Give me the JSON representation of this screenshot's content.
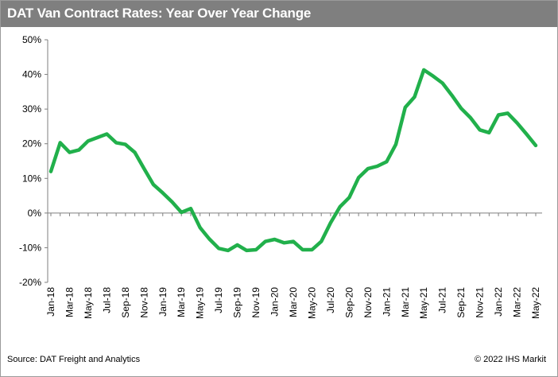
{
  "title": "DAT Van Contract Rates: Year Over Year Change",
  "source": "Source: DAT Freight and Analytics",
  "copyright": "© 2022 IHS Markit",
  "chart_data": {
    "type": "line",
    "title": "DAT Van Contract Rates: Year Over Year Change",
    "xlabel": "",
    "ylabel": "",
    "ylim": [
      -20,
      50
    ],
    "y_ticks": [
      -20,
      -10,
      0,
      10,
      20,
      30,
      40,
      50
    ],
    "y_tick_labels": [
      "-20%",
      "-10%",
      "0%",
      "10%",
      "20%",
      "30%",
      "40%",
      "50%"
    ],
    "x_tick_labels": [
      "Jan-18",
      "Mar-18",
      "May-18",
      "Jul-18",
      "Sep-18",
      "Nov-18",
      "Jan-19",
      "Mar-19",
      "May-19",
      "Jul-19",
      "Sep-19",
      "Nov-19",
      "Jan-20",
      "Mar-20",
      "May-20",
      "Jul-20",
      "Sep-20",
      "Nov-20",
      "Jan-21",
      "Mar-21",
      "May-21",
      "Jul-21",
      "Sep-21",
      "Nov-21",
      "Jan-22",
      "Mar-22",
      "May-22"
    ],
    "grid": false,
    "line_color": "#21b04b",
    "series": [
      {
        "values": [
          12,
          20.3,
          17.5,
          18.2,
          20.8,
          21.8,
          22.8,
          20.3,
          19.8,
          17.5,
          12.8,
          8.2,
          5.8,
          3.2,
          0.2,
          1.3,
          -4.2,
          -7.5,
          -10.2,
          -10.8,
          -9.2,
          -10.8,
          -10.6,
          -8.2,
          -7.6,
          -8.6,
          -8.2,
          -10.6,
          -10.6,
          -8.2,
          -2.8,
          1.8,
          4.5,
          10.2,
          12.8,
          13.5,
          14.8,
          19.8,
          30.5,
          33.5,
          41.3,
          39.5,
          37.5,
          34,
          30.2,
          27.5,
          24,
          23.2,
          28.3,
          28.8,
          26,
          22.8,
          19.5
        ]
      }
    ]
  }
}
